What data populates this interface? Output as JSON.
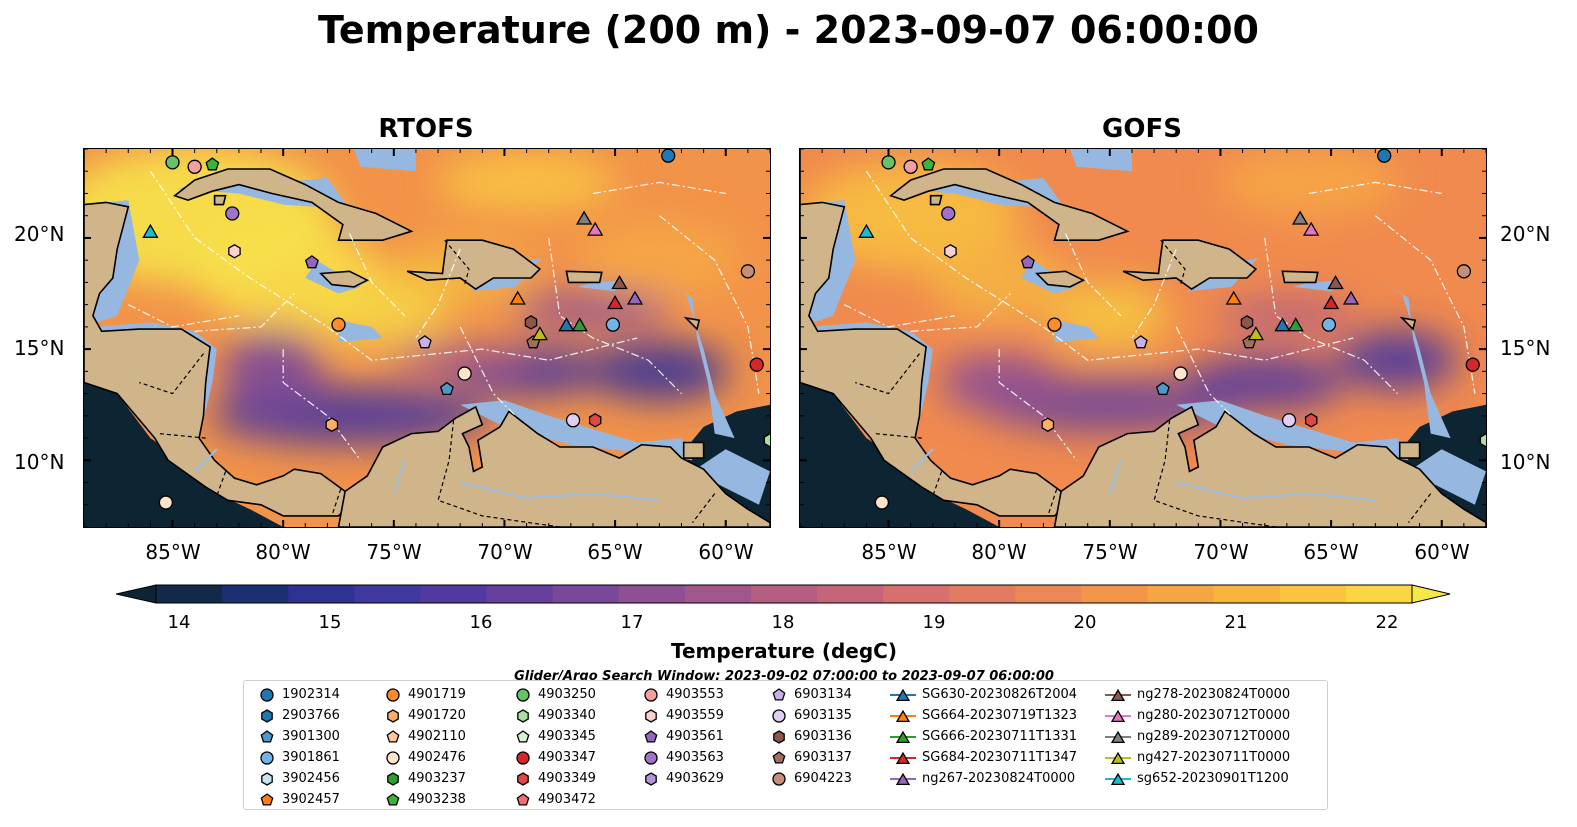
{
  "title": "Temperature (200 m) - 2023-09-07 06:00:00",
  "panels": [
    {
      "title": "RTOFS"
    },
    {
      "title": "GOFS"
    }
  ],
  "axes": {
    "y_ticks": [
      "20°N",
      "15°N",
      "10°N"
    ],
    "x_ticks": [
      "85°W",
      "80°W",
      "75°W",
      "70°W",
      "65°W",
      "60°W"
    ],
    "lon_range": [
      -89,
      -58
    ],
    "lat_range": [
      7,
      24
    ]
  },
  "colorbar": {
    "label": "Temperature (degC)",
    "ticks": [
      "14",
      "15",
      "16",
      "17",
      "18",
      "19",
      "20",
      "21",
      "22"
    ],
    "min": 14,
    "max": 22,
    "extend": "both",
    "colors": [
      "#0d2432",
      "#122a48",
      "#1b2f72",
      "#2c3393",
      "#3e389f",
      "#52399f",
      "#66409c",
      "#7a4899",
      "#8e4f93",
      "#a1568c",
      "#b35e82",
      "#c6657a",
      "#d76f6e",
      "#e37a62",
      "#ec8756",
      "#f4964a",
      "#f6a544",
      "#f8b43f",
      "#fac440",
      "#fcd542",
      "#f7e84a"
    ]
  },
  "search_window": "Glider/Argo Search Window: 2023-09-02 07:00:00 to 2023-09-07 06:00:00",
  "legend": {
    "columns": [
      [
        {
          "label": "1902314",
          "marker": "circle",
          "color": "#1f77b4"
        },
        {
          "label": "2903766",
          "marker": "hexagon",
          "color": "#1f77b4"
        },
        {
          "label": "3901300",
          "marker": "pentagon",
          "color": "#4e97c9"
        },
        {
          "label": "3901861",
          "marker": "circle",
          "color": "#74b3e6"
        },
        {
          "label": "3902456",
          "marker": "hexagon",
          "color": "#c6e2f5"
        },
        {
          "label": "3902457",
          "marker": "pentagon",
          "color": "#ff7f0e"
        }
      ],
      [
        {
          "label": "4901719",
          "marker": "circle",
          "color": "#ff8c2a"
        },
        {
          "label": "4901720",
          "marker": "hexagon",
          "color": "#ffae66"
        },
        {
          "label": "4902110",
          "marker": "pentagon",
          "color": "#ffc89a"
        },
        {
          "label": "4902476",
          "marker": "circle",
          "color": "#ffe4cc"
        },
        {
          "label": "4903237",
          "marker": "hexagon",
          "color": "#2ca02c"
        },
        {
          "label": "4903238",
          "marker": "pentagon",
          "color": "#3cb43c"
        }
      ],
      [
        {
          "label": "4903250",
          "marker": "circle",
          "color": "#66c266"
        },
        {
          "label": "4903340",
          "marker": "hexagon",
          "color": "#a8e0a0"
        },
        {
          "label": "4903345",
          "marker": "pentagon",
          "color": "#d8f2d2"
        },
        {
          "label": "4903347",
          "marker": "circle",
          "color": "#d62728"
        },
        {
          "label": "4903349",
          "marker": "hexagon",
          "color": "#e04848"
        },
        {
          "label": "4903472",
          "marker": "pentagon",
          "color": "#ee7070"
        }
      ],
      [
        {
          "label": "4903553",
          "marker": "circle",
          "color": "#f4a0a0"
        },
        {
          "label": "4903559",
          "marker": "hexagon",
          "color": "#fbd0cf"
        },
        {
          "label": "4903561",
          "marker": "pentagon",
          "color": "#9467bd"
        },
        {
          "label": "4903563",
          "marker": "circle",
          "color": "#9f74c8"
        },
        {
          "label": "4903629",
          "marker": "hexagon",
          "color": "#b393d6"
        }
      ],
      [
        {
          "label": "6903134",
          "marker": "pentagon",
          "color": "#c9b0e6"
        },
        {
          "label": "6903135",
          "marker": "circle",
          "color": "#e1cff3"
        },
        {
          "label": "6903136",
          "marker": "hexagon",
          "color": "#8c564b"
        },
        {
          "label": "6903137",
          "marker": "pentagon",
          "color": "#a0705e"
        },
        {
          "label": "6904223",
          "marker": "circle",
          "color": "#c58e78"
        }
      ],
      [
        {
          "label": "SG630-20230826T2004",
          "marker": "triangle",
          "color": "#1f77b4"
        },
        {
          "label": "SG664-20230719T1323",
          "marker": "triangle",
          "color": "#ff7f0e"
        },
        {
          "label": "SG666-20230711T1331",
          "marker": "triangle",
          "color": "#2ca02c"
        },
        {
          "label": "SG684-20230711T1347",
          "marker": "triangle",
          "color": "#d62728"
        },
        {
          "label": "ng267-20230824T0000",
          "marker": "triangle",
          "color": "#9467bd"
        }
      ],
      [
        {
          "label": "ng278-20230824T0000",
          "marker": "triangle",
          "color": "#8c564b"
        },
        {
          "label": "ng280-20230712T0000",
          "marker": "triangle",
          "color": "#e377c2"
        },
        {
          "label": "ng289-20230712T0000",
          "marker": "triangle",
          "color": "#7f7f7f"
        },
        {
          "label": "ng427-20230711T0000",
          "marker": "triangle",
          "color": "#bcbd22"
        },
        {
          "label": "sg652-20230901T1200",
          "marker": "triangle",
          "color": "#17becf"
        }
      ]
    ]
  },
  "platforms": [
    {
      "id": "1902314",
      "lon": -62.6,
      "lat": 23.7
    },
    {
      "id": "3901861",
      "lon": -65.1,
      "lat": 16.1
    },
    {
      "id": "4901719",
      "lon": -77.5,
      "lat": 16.1
    },
    {
      "id": "4901720",
      "lon": -77.8,
      "lat": 11.6
    },
    {
      "id": "4902476",
      "lon": -85.3,
      "lat": 8.1
    },
    {
      "id": "4902476",
      "lon": -71.8,
      "lat": 13.9
    },
    {
      "id": "4903250",
      "lon": -85.0,
      "lat": 23.4
    },
    {
      "id": "4903238",
      "lon": -83.2,
      "lat": 23.3
    },
    {
      "id": "4903340",
      "lon": -58.0,
      "lat": 10.9
    },
    {
      "id": "4903347",
      "lon": -58.6,
      "lat": 14.3
    },
    {
      "id": "4903349",
      "lon": -65.9,
      "lat": 11.8
    },
    {
      "id": "4903553",
      "lon": -84.0,
      "lat": 23.2
    },
    {
      "id": "4903559",
      "lon": -82.2,
      "lat": 19.4
    },
    {
      "id": "4903561",
      "lon": -78.7,
      "lat": 18.9
    },
    {
      "id": "4903563",
      "lon": -82.3,
      "lat": 21.1
    },
    {
      "id": "3901300",
      "lon": -72.6,
      "lat": 13.2
    },
    {
      "id": "6903134",
      "lon": -73.6,
      "lat": 15.3
    },
    {
      "id": "6903135",
      "lon": -66.9,
      "lat": 11.8
    },
    {
      "id": "6903136",
      "lon": -68.8,
      "lat": 16.2
    },
    {
      "id": "6903137",
      "lon": -68.7,
      "lat": 15.3
    },
    {
      "id": "6904223",
      "lon": -59.0,
      "lat": 18.5
    },
    {
      "id": "SG630-20230826T2004",
      "lon": -67.2,
      "lat": 16.1
    },
    {
      "id": "SG664-20230719T1323",
      "lon": -69.4,
      "lat": 17.3
    },
    {
      "id": "SG666-20230711T1331",
      "lon": -66.6,
      "lat": 16.1
    },
    {
      "id": "SG684-20230711T1347",
      "lon": -65.0,
      "lat": 17.1
    },
    {
      "id": "ng267-20230824T0000",
      "lon": -64.1,
      "lat": 17.3
    },
    {
      "id": "ng278-20230824T0000",
      "lon": -64.8,
      "lat": 18.0
    },
    {
      "id": "ng280-20230712T0000",
      "lon": -65.9,
      "lat": 20.4
    },
    {
      "id": "ng289-20230712T0000",
      "lon": -66.4,
      "lat": 20.9
    },
    {
      "id": "ng427-20230711T0000",
      "lon": -68.4,
      "lat": 15.7
    },
    {
      "id": "sg652-20230901T1200",
      "lon": -86.0,
      "lat": 20.3
    }
  ]
}
